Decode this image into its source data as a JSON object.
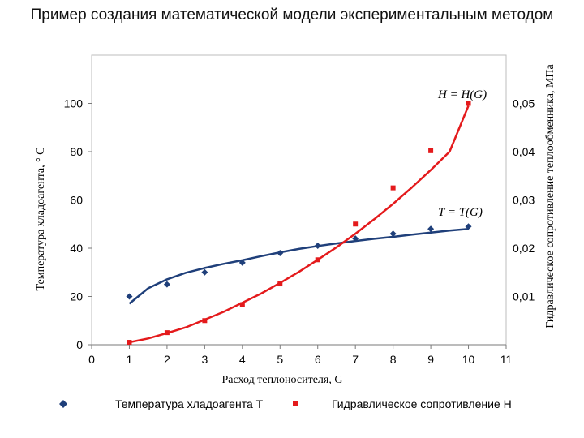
{
  "page_title": "Пример создания математической модели экспериментальным методом",
  "chart_data": {
    "type": "line",
    "xlabel": "Расход теплоносителя, G",
    "ylabel_left": "Температура хладоагента, ° С",
    "ylabel_right": "Гидравлическое сопротивление теплообменника, МПа",
    "xlim": [
      0,
      11
    ],
    "ylim_left": [
      0,
      120
    ],
    "ylim_right": [
      0,
      0.06
    ],
    "x_ticks": [
      "0",
      "1",
      "2",
      "3",
      "4",
      "5",
      "6",
      "7",
      "8",
      "9",
      "10",
      "11"
    ],
    "y_ticks_left": [
      "0",
      "20",
      "40",
      "60",
      "80",
      "100"
    ],
    "y_ticks_right": [
      "0,01",
      "0,02",
      "0,03",
      "0,04",
      "0,05"
    ],
    "grid": false,
    "legend_position": "bottom",
    "series": [
      {
        "name": "Температура хладоагента Т",
        "axis": "left",
        "color": "#1f3f7a",
        "marker": "diamond",
        "points": {
          "x": [
            1,
            2,
            3,
            4,
            5,
            6,
            7,
            8,
            9,
            10
          ],
          "y": [
            20,
            25,
            30,
            34,
            38,
            41,
            44,
            46,
            48,
            49
          ]
        },
        "fit_curve": {
          "x": [
            1,
            1.5,
            2,
            2.5,
            3,
            3.5,
            4,
            4.5,
            5,
            5.5,
            6,
            6.5,
            7,
            7.5,
            8,
            8.5,
            9,
            9.5,
            10
          ],
          "y": [
            17,
            23.4,
            27.1,
            29.8,
            31.8,
            33.5,
            35,
            36.7,
            38.3,
            39.7,
            40.9,
            42,
            43,
            43.9,
            44.7,
            45.6,
            46.5,
            47.3,
            48
          ]
        },
        "annotation": "T = T(G)"
      },
      {
        "name": "Гидравлическое сопротивление Н",
        "axis": "right",
        "color": "#e41a1c",
        "marker": "square",
        "points": {
          "x": [
            1,
            2,
            3,
            4,
            5,
            6,
            7,
            8,
            9,
            10
          ],
          "y": [
            0.0005,
            0.0025,
            0.005,
            0.0083,
            0.0126,
            0.0176,
            0.025,
            0.0325,
            0.0402,
            0.05
          ]
        },
        "fit_curve": {
          "x": [
            1,
            1.5,
            2,
            2.5,
            3,
            3.5,
            4,
            4.5,
            5,
            5.5,
            6,
            6.5,
            7,
            7.5,
            8,
            8.5,
            9,
            9.5,
            10
          ],
          "y": [
            0.0005,
            0.0013,
            0.0024,
            0.0036,
            0.0052,
            0.0068,
            0.0087,
            0.0106,
            0.0128,
            0.0151,
            0.0176,
            0.0202,
            0.023,
            0.026,
            0.0292,
            0.0326,
            0.0362,
            0.04,
            0.0495
          ]
        },
        "annotation": "H = H(G)"
      }
    ]
  }
}
